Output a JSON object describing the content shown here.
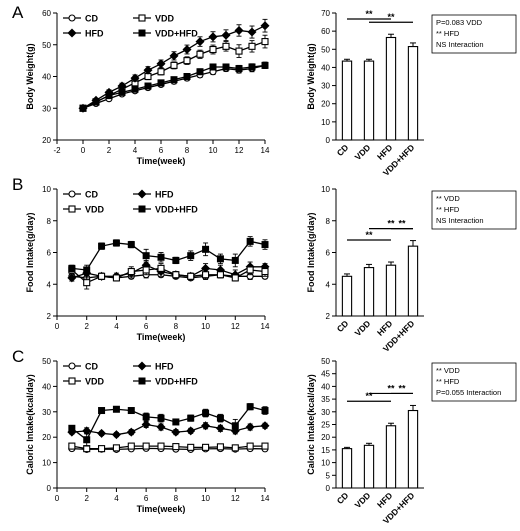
{
  "chart_data": [
    {
      "panel": "A",
      "type": "line",
      "xlabel": "Time(week)",
      "ylabel": "Body Weight(g)",
      "xlim": [
        -2,
        14
      ],
      "xticks": [
        -2,
        0,
        2,
        4,
        6,
        8,
        10,
        12,
        14
      ],
      "ylim": [
        20,
        60
      ],
      "yticks": [
        20,
        30,
        40,
        50,
        60
      ],
      "legend": [
        "CD",
        "VDD",
        "HFD",
        "VDD+HFD"
      ],
      "x": [
        0,
        1,
        2,
        3,
        4,
        5,
        6,
        7,
        8,
        9,
        10,
        11,
        12,
        13,
        14
      ],
      "series": [
        {
          "name": "CD",
          "marker": "circle-open",
          "values": [
            30,
            31.5,
            33,
            34.5,
            35.5,
            36.5,
            37.5,
            38.5,
            39.5,
            40.5,
            41.5,
            42.5,
            42,
            42.5,
            43.5
          ],
          "error": [
            0.5,
            0.5,
            0.6,
            0.6,
            0.6,
            0.7,
            0.7,
            0.8,
            0.8,
            0.8,
            0.9,
            0.9,
            0.9,
            1,
            1
          ]
        },
        {
          "name": "VDD",
          "marker": "square-open",
          "values": [
            30,
            32,
            34,
            36,
            38,
            40,
            41.5,
            43.5,
            45,
            47,
            48.5,
            49.5,
            48,
            49.5,
            51
          ],
          "error": [
            0.5,
            0.6,
            0.7,
            0.8,
            0.9,
            1,
            1,
            1.1,
            1.2,
            1.3,
            1.4,
            1.5,
            2,
            1.8,
            2
          ]
        },
        {
          "name": "HFD",
          "marker": "diamond-filled",
          "values": [
            30,
            32.5,
            35,
            37,
            39.5,
            42,
            44,
            46.5,
            48.5,
            51,
            52.5,
            53,
            54.5,
            54,
            56
          ],
          "error": [
            0.5,
            0.6,
            0.8,
            0.9,
            1,
            1.1,
            1.2,
            1.3,
            1.4,
            1.5,
            1.6,
            1.7,
            1.8,
            1.9,
            2
          ]
        },
        {
          "name": "VDD+HFD",
          "marker": "square-filled",
          "values": [
            30,
            32,
            34,
            35,
            36,
            37,
            38,
            39,
            40,
            41.5,
            43,
            43,
            42.5,
            43,
            43.5
          ],
          "error": [
            0.5,
            0.5,
            0.6,
            0.6,
            0.7,
            0.7,
            0.8,
            0.8,
            0.8,
            0.9,
            0.9,
            0.9,
            1,
            1,
            1
          ]
        }
      ]
    },
    {
      "panel": "A",
      "type": "bar",
      "ylabel": "Body Weight(g)",
      "ylim": [
        0,
        70
      ],
      "yticks": [
        0,
        10,
        20,
        30,
        40,
        50,
        60,
        70
      ],
      "categories": [
        "CD",
        "VDD",
        "HFD",
        "VDD+HFD"
      ],
      "values": [
        43.5,
        43.5,
        56.5,
        51.5
      ],
      "error": [
        1,
        1,
        1.8,
        2
      ],
      "significance": [
        {
          "from": 0,
          "to": 2,
          "label": "**"
        },
        {
          "from": 1,
          "to": 3,
          "label": "**"
        }
      ],
      "stats": [
        "P=0.083 VDD",
        "** HFD",
        "NS Interaction"
      ]
    },
    {
      "panel": "B",
      "type": "line",
      "xlabel": "Time(week)",
      "ylabel": "Food Intake(g/day)",
      "xlim": [
        0,
        14
      ],
      "xticks": [
        0,
        2,
        4,
        6,
        8,
        10,
        12,
        14
      ],
      "ylim": [
        2,
        10
      ],
      "yticks": [
        2,
        4,
        6,
        8,
        10
      ],
      "legend": [
        "CD",
        "HFD",
        "VDD",
        "VDD+HFD"
      ],
      "x": [
        1,
        2,
        3,
        4,
        5,
        6,
        7,
        8,
        9,
        10,
        11,
        12,
        13,
        14
      ],
      "series": [
        {
          "name": "CD",
          "marker": "circle-open",
          "values": [
            4.5,
            4.4,
            4.5,
            4.4,
            4.5,
            4.6,
            4.6,
            4.5,
            4.4,
            4.5,
            4.6,
            4.5,
            4.5,
            4.5
          ],
          "error": [
            0.15,
            0.2,
            0.15,
            0.15,
            0.15,
            0.2,
            0.15,
            0.15,
            0.15,
            0.15,
            0.2,
            0.15,
            0.2,
            0.15
          ]
        },
        {
          "name": "HFD",
          "marker": "diamond-filled",
          "values": [
            4.4,
            4.7,
            4.5,
            4.5,
            4.7,
            5.2,
            4.8,
            4.6,
            4.5,
            5.0,
            4.9,
            4.6,
            5.1,
            5.1
          ],
          "error": [
            0.2,
            0.3,
            0.2,
            0.2,
            0.3,
            0.3,
            0.3,
            0.2,
            0.2,
            0.3,
            0.3,
            0.3,
            0.3,
            0.2
          ]
        },
        {
          "name": "VDD",
          "marker": "square-open",
          "values": [
            4.9,
            4.1,
            4.5,
            4.4,
            4.8,
            4.9,
            5.0,
            4.6,
            4.5,
            4.6,
            4.6,
            4.4,
            4.9,
            4.8
          ],
          "error": [
            0.2,
            0.4,
            0.2,
            0.2,
            0.3,
            0.3,
            0.3,
            0.2,
            0.2,
            0.3,
            0.2,
            0.2,
            0.3,
            0.3
          ]
        },
        {
          "name": "VDD+HFD",
          "marker": "square-filled",
          "values": [
            5.0,
            4.9,
            6.4,
            6.6,
            6.5,
            5.8,
            5.7,
            5.5,
            5.8,
            6.2,
            5.6,
            5.5,
            6.7,
            6.5
          ],
          "error": [
            0.2,
            0.3,
            0.2,
            0.2,
            0.2,
            0.4,
            0.3,
            0.2,
            0.3,
            0.4,
            0.3,
            0.4,
            0.3,
            0.3
          ]
        }
      ]
    },
    {
      "panel": "B",
      "type": "bar",
      "ylabel": "Food Intake(g/day)",
      "ylim": [
        2,
        10
      ],
      "yticks": [
        2,
        4,
        6,
        8,
        10
      ],
      "categories": [
        "CD",
        "VDD",
        "HFD",
        "VDD+HFD"
      ],
      "values": [
        4.5,
        5.05,
        5.2,
        6.4
      ],
      "error": [
        0.15,
        0.2,
        0.2,
        0.35
      ],
      "significance": [
        {
          "from": 0,
          "to": 2,
          "label": "**"
        },
        {
          "from": 1,
          "to": 3,
          "label": "**"
        },
        {
          "from": 2,
          "to": 3,
          "label": "**"
        }
      ],
      "stats": [
        "** VDD",
        "** HFD",
        "NS Interaction"
      ]
    },
    {
      "panel": "C",
      "type": "line",
      "xlabel": "Time(week)",
      "ylabel": "Caloric Intake(kcal/day)",
      "xlim": [
        0,
        14
      ],
      "xticks": [
        0,
        2,
        4,
        6,
        8,
        10,
        12,
        14
      ],
      "ylim": [
        0,
        50
      ],
      "yticks": [
        0,
        10,
        20,
        30,
        40,
        50
      ],
      "legend": [
        "CD",
        "HFD",
        "VDD",
        "VDD+HFD"
      ],
      "x": [
        1,
        2,
        3,
        4,
        5,
        6,
        7,
        8,
        9,
        10,
        11,
        12,
        13,
        14
      ],
      "series": [
        {
          "name": "CD",
          "marker": "circle-open",
          "values": [
            15.5,
            15.2,
            15.3,
            15.2,
            15.4,
            15.6,
            15.5,
            15.3,
            15.2,
            15.4,
            15.5,
            15.3,
            15.5,
            15.4
          ],
          "error": [
            0.4,
            0.4,
            0.4,
            0.4,
            0.4,
            0.4,
            0.4,
            0.4,
            0.4,
            0.4,
            0.4,
            0.4,
            0.4,
            0.4
          ]
        },
        {
          "name": "HFD",
          "marker": "diamond-filled",
          "values": [
            22.0,
            22.5,
            21.5,
            21.0,
            22.0,
            25.0,
            24.0,
            22.0,
            22.5,
            24.5,
            23.5,
            22.5,
            24.0,
            24.5
          ],
          "error": [
            0.8,
            1.2,
            0.8,
            0.8,
            1,
            1.2,
            1.2,
            1,
            1,
            1.2,
            1.2,
            1.2,
            1.2,
            1
          ]
        },
        {
          "name": "VDD",
          "marker": "square-open",
          "values": [
            16.5,
            15.5,
            15.5,
            15.8,
            16.5,
            16.5,
            16.5,
            16.3,
            16.0,
            16.0,
            16.2,
            15.8,
            16.5,
            16.5
          ],
          "error": [
            0.5,
            0.6,
            0.5,
            0.5,
            0.5,
            0.5,
            0.5,
            0.5,
            0.5,
            0.5,
            0.5,
            0.5,
            0.5,
            0.5
          ]
        },
        {
          "name": "VDD+HFD",
          "marker": "square-filled",
          "values": [
            23.5,
            19.0,
            30.5,
            31.0,
            30.5,
            28.0,
            27.5,
            26.0,
            27.5,
            29.5,
            27.5,
            24.5,
            32.0,
            30.5
          ],
          "error": [
            0.8,
            2.5,
            1,
            1,
            1,
            1.5,
            1.5,
            1,
            1.2,
            1.5,
            1.5,
            2.5,
            1.2,
            1.5
          ]
        }
      ]
    },
    {
      "panel": "C",
      "type": "bar",
      "ylabel": "Caloric Intake(kcal/day)",
      "ylim": [
        0,
        50
      ],
      "yticks": [
        0,
        5,
        10,
        15,
        20,
        25,
        30,
        35,
        40,
        45,
        50
      ],
      "categories": [
        "CD",
        "VDD",
        "HFD",
        "VDD+HFD"
      ],
      "values": [
        15.5,
        16.8,
        24.5,
        30.5
      ],
      "error": [
        0.5,
        0.8,
        1,
        2
      ],
      "significance": [
        {
          "from": 0,
          "to": 2,
          "label": "**"
        },
        {
          "from": 1,
          "to": 3,
          "label": "**"
        },
        {
          "from": 2,
          "to": 3,
          "label": "**"
        }
      ],
      "stats": [
        "** VDD",
        "** HFD",
        "P=0.055 Interaction"
      ]
    }
  ]
}
